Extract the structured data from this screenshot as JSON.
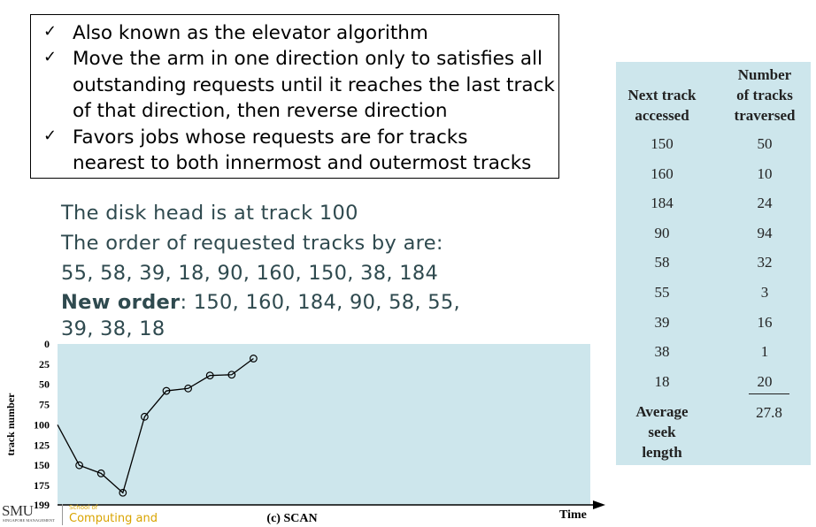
{
  "bullets": [
    {
      "lines": [
        "Also known as the elevator algorithm"
      ]
    },
    {
      "lines": [
        "Move the arm in one direction only to satisfies all",
        "outstanding requests until it reaches the last track",
        "of that direction, then reverse direction"
      ]
    },
    {
      "lines": [
        "Favors jobs whose requests are for tracks",
        "nearest to both innermost and outermost tracks"
      ]
    }
  ],
  "check_glyph": "✓",
  "intro": {
    "line1": "The disk head is at track 100",
    "line2": "The order of requested tracks by are:",
    "line3": "55, 58, 39, 18, 90, 160, 150, 38, 184",
    "new_order_label": "New order",
    "new_order_rest": ": 150, 160, 184, 90, 58, 55,",
    "new_order_cont": "39, 38, 18"
  },
  "table": {
    "col1_header": [
      "Next track",
      "accessed"
    ],
    "col2_header": [
      "Number",
      "of tracks",
      "traversed"
    ],
    "rows": [
      [
        "150",
        "50"
      ],
      [
        "160",
        "10"
      ],
      [
        "184",
        "24"
      ],
      [
        "90",
        "94"
      ],
      [
        "58",
        "32"
      ],
      [
        "55",
        "3"
      ],
      [
        "39",
        "16"
      ],
      [
        "38",
        "1"
      ],
      [
        "18",
        "20"
      ]
    ],
    "avg_label": [
      "Average",
      "seek",
      "length"
    ],
    "avg_value": "27.8"
  },
  "chart_data": {
    "type": "line",
    "title": "(c) SCAN",
    "xlabel": "Time",
    "ylabel": "track number",
    "y_ticks": [
      "0",
      "25",
      "50",
      "75",
      "100",
      "125",
      "150",
      "175",
      "199"
    ],
    "y_tick_values": [
      0,
      25,
      50,
      75,
      100,
      125,
      150,
      175,
      199
    ],
    "ylim": [
      0,
      199
    ],
    "y_inverted": true,
    "series": [
      {
        "values": [
          100,
          150,
          160,
          184,
          90,
          58,
          55,
          39,
          38,
          18
        ]
      }
    ],
    "background": "#cde6ec",
    "line_color": "#000000"
  },
  "footer": {
    "logo": "SMU",
    "logo_sub": "SINGAPORE MANAGEMENT",
    "school_of": "School of",
    "school_name": "Computing and",
    "school_color": "#d9a400"
  }
}
